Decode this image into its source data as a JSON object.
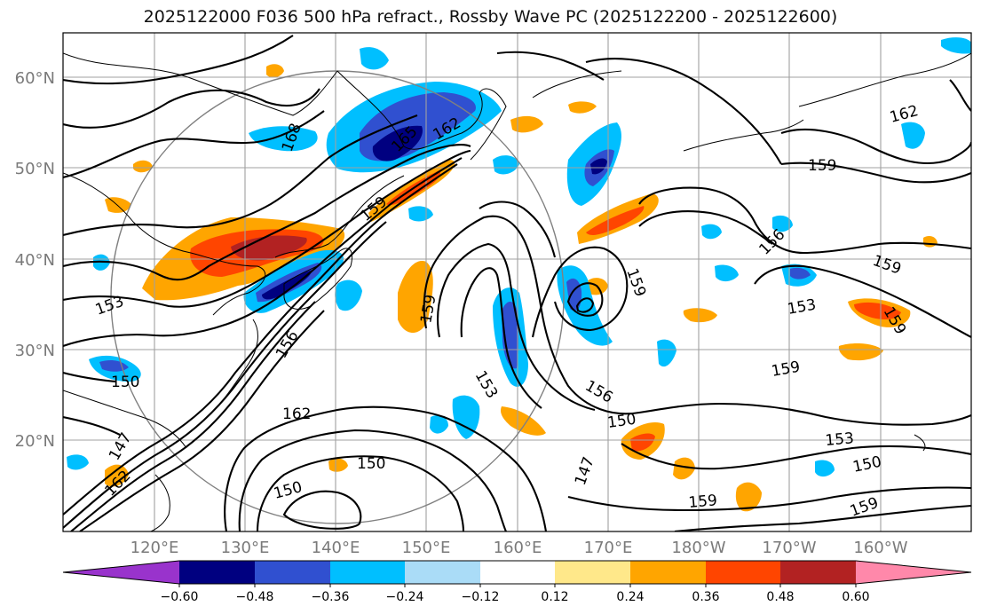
{
  "title": "2025122000 F036 500 hPa refract., Rossby Wave PC (2025122200 - 2025122600)",
  "lat_labels": [
    "60°N",
    "50°N",
    "40°N",
    "30°N",
    "20°N"
  ],
  "lon_labels": [
    "120°E",
    "130°E",
    "140°E",
    "150°E",
    "160°E",
    "170°E",
    "180°W",
    "170°W",
    "160°W"
  ],
  "contour_labels": [
    "168",
    "165",
    "162",
    "159",
    "153",
    "156",
    "159",
    "150",
    "162",
    "150",
    "147",
    "162",
    "150",
    "153",
    "156",
    "147",
    "150",
    "159",
    "159",
    "156",
    "159",
    "153",
    "159",
    "159",
    "153",
    "150",
    "159",
    "162"
  ],
  "colorbar": {
    "ticks": [
      "−0.60",
      "−0.48",
      "−0.36",
      "−0.24",
      "−0.12",
      "0.12",
      "0.24",
      "0.36",
      "0.48",
      "0.60"
    ],
    "colors": [
      "#9933cc",
      "#000080",
      "#3050d0",
      "#00bfff",
      "#aadcf7",
      "#ffffff",
      "#ffe88a",
      "#ffa500",
      "#ff4500",
      "#b22222",
      "#ff88aa"
    ]
  }
}
